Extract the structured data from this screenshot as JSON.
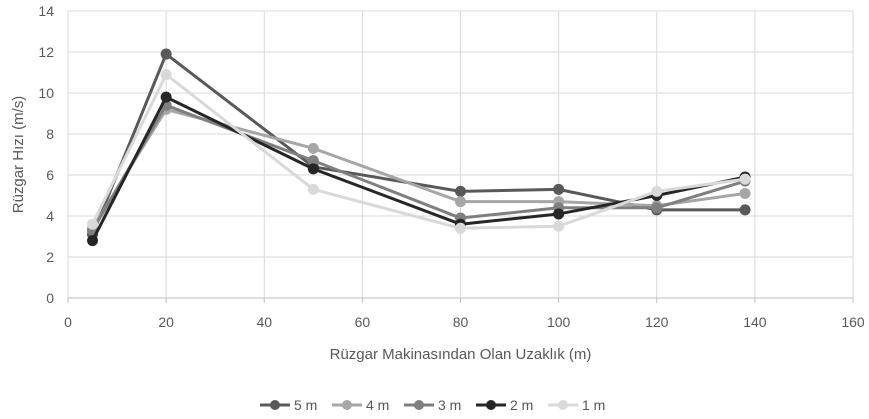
{
  "chart_data": {
    "type": "line",
    "title": "",
    "xlabel": "Rüzgar Makinasından Olan Uzaklık (m)",
    "ylabel": "Rüzgar Hızı (m/s)",
    "xlim": [
      0,
      160
    ],
    "ylim": [
      0,
      14
    ],
    "x_ticks": [
      0,
      20,
      40,
      60,
      80,
      100,
      120,
      140,
      160
    ],
    "y_ticks": [
      0,
      2,
      4,
      6,
      8,
      10,
      12,
      14
    ],
    "grid": "horizontal",
    "legend_position": "bottom",
    "x": [
      5,
      20,
      50,
      80,
      100,
      120,
      138
    ],
    "series": [
      {
        "name": "5 m",
        "color": "#595959",
        "values": [
          3.1,
          11.9,
          6.4,
          5.2,
          5.3,
          4.3,
          4.3
        ]
      },
      {
        "name": "4 m",
        "color": "#a6a6a6",
        "values": [
          3.4,
          9.2,
          7.3,
          4.7,
          4.7,
          4.5,
          5.1
        ]
      },
      {
        "name": "3 m",
        "color": "#7f7f7f",
        "values": [
          3.3,
          9.4,
          6.7,
          3.9,
          4.4,
          4.4,
          5.7
        ]
      },
      {
        "name": "2 m",
        "color": "#262626",
        "values": [
          2.8,
          9.8,
          6.3,
          3.6,
          4.1,
          5.0,
          5.9
        ]
      },
      {
        "name": "1 m",
        "color": "#d9d9d9",
        "values": [
          3.6,
          10.9,
          5.3,
          3.4,
          3.5,
          5.2,
          5.8
        ]
      }
    ]
  }
}
